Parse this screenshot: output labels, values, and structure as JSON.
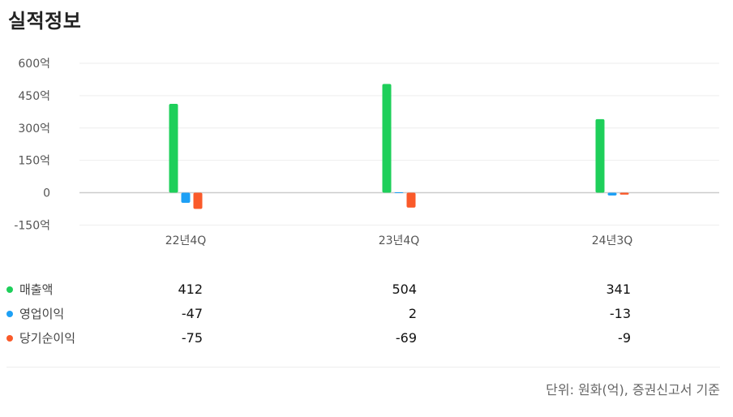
{
  "title": "실적정보",
  "footnote": "단위: 원화(억), 증권신고서 기준",
  "chart_data": {
    "type": "bar",
    "categories": [
      "22년4Q",
      "23년4Q",
      "24년3Q"
    ],
    "series": [
      {
        "name": "매출액",
        "values": [
          412,
          504,
          341
        ],
        "color": "#1ecf5a"
      },
      {
        "name": "영업이익",
        "values": [
          -47,
          2,
          -13
        ],
        "color": "#1ea0f5"
      },
      {
        "name": "당기순이익",
        "values": [
          -75,
          -69,
          -9
        ],
        "color": "#fa5a2a"
      }
    ],
    "ylim": [
      -150,
      600
    ],
    "yticks": [
      "600억",
      "450억",
      "300억",
      "150억",
      "0",
      "-150억"
    ],
    "ytick_values": [
      600,
      450,
      300,
      150,
      0,
      -150
    ],
    "grid": true,
    "legend": "table-below"
  },
  "table": {
    "rows": [
      {
        "label": "매출액",
        "color": "#1ecf5a",
        "values": [
          "412",
          "504",
          "341"
        ]
      },
      {
        "label": "영업이익",
        "color": "#1ea0f5",
        "values": [
          "-47",
          "2",
          "-13"
        ]
      },
      {
        "label": "당기순이익",
        "color": "#fa5a2a",
        "values": [
          "-75",
          "-69",
          "-9"
        ]
      }
    ]
  }
}
